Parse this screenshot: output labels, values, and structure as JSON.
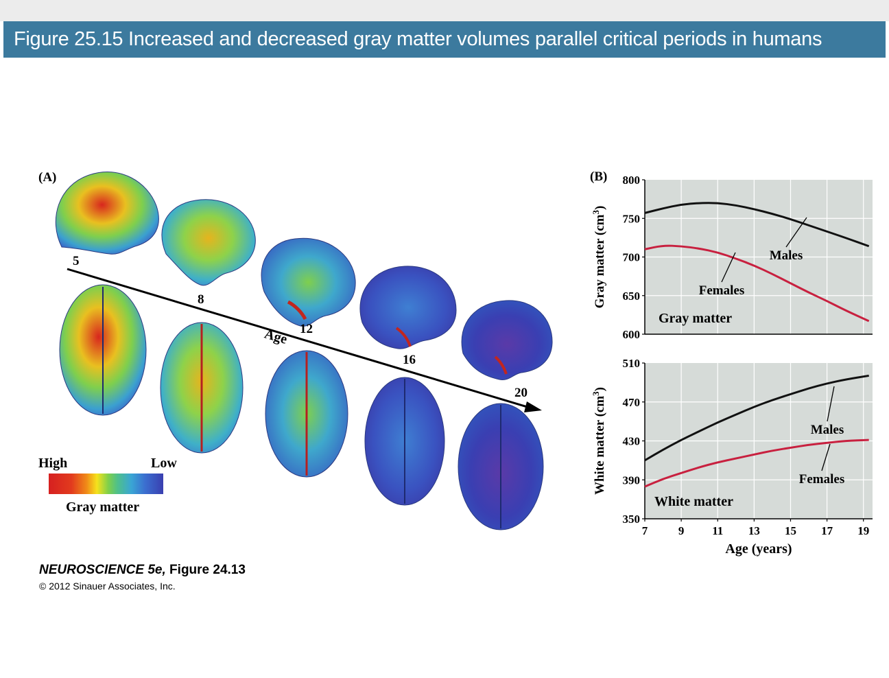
{
  "header": {
    "title": "Figure 25.15  Increased and decreased gray matter volumes parallel critical periods in humans"
  },
  "panel_a": {
    "label": "(A)",
    "axis_label": "Age",
    "age_ticks": [
      "5",
      "8",
      "12",
      "16",
      "20"
    ],
    "legend": {
      "high": "High",
      "low": "Low",
      "title": "Gray matter",
      "colors": [
        "#d62020",
        "#f08a18",
        "#f6e21c",
        "#7fd04a",
        "#3aa6d4",
        "#3b6fd0",
        "#3a3fb0"
      ]
    }
  },
  "credit": {
    "book": "NEUROSCIENCE 5e,",
    "figure": " Figure 24.13",
    "copyright": "© 2012 Sinauer Associates, Inc."
  },
  "colors": {
    "banner": "#3c7a9e",
    "plot_bg": "#d6dbd8",
    "males": "#111111",
    "females": "#c8203f"
  },
  "chart_data": [
    {
      "type": "line",
      "panel_label": "(B)",
      "title": "Gray matter",
      "ylabel": "Gray matter (cm3)",
      "xlabel": "",
      "xlim": [
        7,
        19.5
      ],
      "ylim": [
        600,
        800
      ],
      "yticks": [
        600,
        650,
        700,
        750,
        800
      ],
      "grid": true,
      "x": [
        7,
        8,
        9,
        10,
        11,
        12,
        13,
        14,
        15,
        16,
        17,
        18,
        19.3
      ],
      "series": [
        {
          "name": "Males",
          "color": "#111111",
          "values": [
            757,
            763,
            768,
            770,
            770,
            767,
            762,
            756,
            749,
            741,
            733,
            725,
            714
          ]
        },
        {
          "name": "Females",
          "color": "#c8203f",
          "values": [
            710,
            715,
            714,
            711,
            706,
            698,
            689,
            678,
            666,
            654,
            643,
            631,
            617
          ]
        }
      ]
    },
    {
      "type": "line",
      "title": "White matter",
      "ylabel": "White matter (cm3)",
      "xlabel": "Age (years)",
      "xlim": [
        7,
        19.5
      ],
      "ylim": [
        350,
        510
      ],
      "yticks": [
        350,
        390,
        430,
        470,
        510
      ],
      "xticks": [
        7,
        9,
        11,
        13,
        15,
        17,
        19
      ],
      "grid": true,
      "x": [
        7,
        8,
        9,
        10,
        11,
        12,
        13,
        14,
        15,
        16,
        17,
        18,
        19.3
      ],
      "series": [
        {
          "name": "Males",
          "color": "#111111",
          "values": [
            410,
            421,
            431,
            440,
            449,
            457,
            465,
            472,
            478,
            484,
            489,
            493,
            497
          ]
        },
        {
          "name": "Females",
          "color": "#c8203f",
          "values": [
            383,
            391,
            397,
            403,
            408,
            412,
            416,
            420,
            423,
            426,
            428,
            430,
            431
          ]
        }
      ]
    }
  ]
}
